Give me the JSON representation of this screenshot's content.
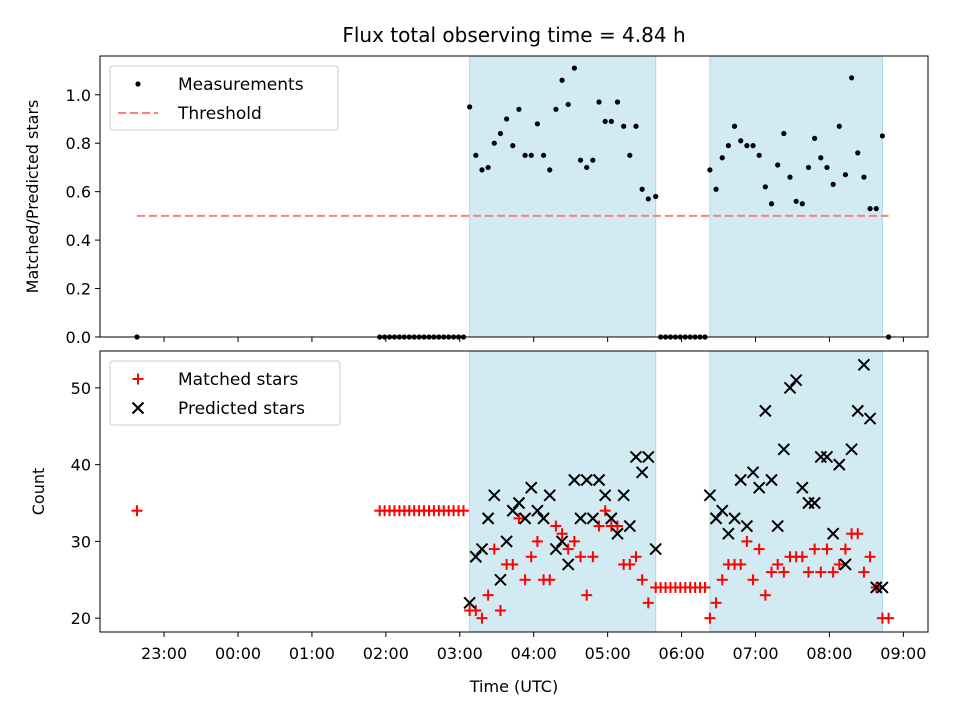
{
  "title": "Flux total observing time = 4.84 h",
  "colors": {
    "span": "#add8e6",
    "measurement": "#000000",
    "threshold": "#ff7f7f",
    "matched": "#ff0000",
    "predicted": "#000000"
  },
  "chart_data": [
    {
      "type": "scatter",
      "ylabel": "Matched/Predicted stars",
      "ylim": [
        0,
        1.16
      ],
      "yticks": [
        0.0,
        0.2,
        0.4,
        0.6,
        0.8,
        1.0
      ],
      "ytick_labels": [
        "0.0",
        "0.2",
        "0.4",
        "0.6",
        "0.8",
        "1.0"
      ],
      "legend_position": "top-left",
      "legend": [
        "Measurements",
        "Threshold"
      ],
      "threshold": {
        "value": 0.5,
        "x_start": "22:38",
        "x_end": "08:48"
      },
      "observing_spans": [
        [
          "03:08",
          "05:39"
        ],
        [
          "06:23",
          "08:43"
        ]
      ],
      "series": [
        {
          "name": "Measurements",
          "x": [
            "22:38",
            "01:55",
            "01:59",
            "02:03",
            "02:07",
            "02:11",
            "02:15",
            "02:19",
            "02:23",
            "02:27",
            "02:31",
            "02:35",
            "02:39",
            "02:43",
            "02:47",
            "02:51",
            "02:55",
            "02:59",
            "03:03",
            "03:08",
            "03:13",
            "03:18",
            "03:23",
            "03:28",
            "03:33",
            "03:38",
            "03:43",
            "03:48",
            "03:53",
            "03:58",
            "04:03",
            "04:08",
            "04:13",
            "04:18",
            "04:23",
            "04:28",
            "04:33",
            "04:38",
            "04:43",
            "04:48",
            "04:53",
            "04:58",
            "05:03",
            "05:08",
            "05:13",
            "05:18",
            "05:23",
            "05:28",
            "05:33",
            "05:39",
            "05:43",
            "05:47",
            "05:51",
            "05:55",
            "05:59",
            "06:03",
            "06:07",
            "06:11",
            "06:15",
            "06:19",
            "06:23",
            "06:28",
            "06:33",
            "06:38",
            "06:43",
            "06:48",
            "06:53",
            "06:58",
            "07:03",
            "07:08",
            "07:13",
            "07:18",
            "07:23",
            "07:28",
            "07:33",
            "07:38",
            "07:43",
            "07:48",
            "07:53",
            "07:58",
            "08:03",
            "08:08",
            "08:13",
            "08:18",
            "08:23",
            "08:28",
            "08:33",
            "08:38",
            "08:43",
            "08:48"
          ],
          "y": [
            0.0,
            0.0,
            0.0,
            0.0,
            0.0,
            0.0,
            0.0,
            0.0,
            0.0,
            0.0,
            0.0,
            0.0,
            0.0,
            0.0,
            0.0,
            0.0,
            0.0,
            0.0,
            0.0,
            0.95,
            0.75,
            0.69,
            0.7,
            0.8,
            0.84,
            0.9,
            0.79,
            0.94,
            0.75,
            0.75,
            0.88,
            0.75,
            0.69,
            0.94,
            1.06,
            0.96,
            1.11,
            0.73,
            0.7,
            0.73,
            0.97,
            0.89,
            0.89,
            0.97,
            0.87,
            0.75,
            0.87,
            0.61,
            0.57,
            0.58,
            0.0,
            0.0,
            0.0,
            0.0,
            0.0,
            0.0,
            0.0,
            0.0,
            0.0,
            0.0,
            0.69,
            0.61,
            0.74,
            0.79,
            0.87,
            0.81,
            0.79,
            0.79,
            0.75,
            0.62,
            0.55,
            0.71,
            0.84,
            0.66,
            0.56,
            0.55,
            0.7,
            0.82,
            0.74,
            0.7,
            0.63,
            0.87,
            0.67,
            1.07,
            0.76,
            0.66,
            0.53,
            0.53,
            0.83,
            0.0
          ]
        }
      ]
    },
    {
      "type": "scatter",
      "xlabel": "Time (UTC)",
      "ylabel": "Count",
      "ylim": [
        18.2,
        54.8
      ],
      "yticks": [
        20,
        30,
        40,
        50
      ],
      "ytick_labels": [
        "20",
        "30",
        "40",
        "50"
      ],
      "xlim": [
        "22:08",
        "09:20"
      ],
      "xticks": [
        "23:00",
        "00:00",
        "01:00",
        "02:00",
        "03:00",
        "04:00",
        "05:00",
        "06:00",
        "07:00",
        "08:00",
        "09:00"
      ],
      "xtick_labels": [
        "23:00",
        "00:00",
        "01:00",
        "02:00",
        "03:00",
        "04:00",
        "05:00",
        "06:00",
        "07:00",
        "08:00",
        "09:00"
      ],
      "legend_position": "top-left",
      "legend": [
        "Matched stars",
        "Predicted stars"
      ],
      "observing_spans": [
        [
          "03:08",
          "05:39"
        ],
        [
          "06:23",
          "08:43"
        ]
      ],
      "series": [
        {
          "name": "Matched stars",
          "x": [
            "22:38",
            "01:55",
            "01:59",
            "02:03",
            "02:07",
            "02:11",
            "02:15",
            "02:19",
            "02:23",
            "02:27",
            "02:31",
            "02:35",
            "02:39",
            "02:43",
            "02:47",
            "02:51",
            "02:55",
            "02:59",
            "03:03",
            "03:08",
            "03:13",
            "03:18",
            "03:23",
            "03:28",
            "03:33",
            "03:38",
            "03:43",
            "03:48",
            "03:53",
            "03:58",
            "04:03",
            "04:08",
            "04:13",
            "04:18",
            "04:23",
            "04:28",
            "04:33",
            "04:38",
            "04:43",
            "04:48",
            "04:53",
            "04:58",
            "05:03",
            "05:08",
            "05:13",
            "05:18",
            "05:23",
            "05:28",
            "05:33",
            "05:39",
            "05:43",
            "05:47",
            "05:51",
            "05:55",
            "05:59",
            "06:03",
            "06:07",
            "06:11",
            "06:15",
            "06:19",
            "06:23",
            "06:28",
            "06:33",
            "06:38",
            "06:43",
            "06:48",
            "06:53",
            "06:58",
            "07:03",
            "07:08",
            "07:13",
            "07:18",
            "07:23",
            "07:28",
            "07:33",
            "07:38",
            "07:43",
            "07:48",
            "07:53",
            "07:58",
            "08:03",
            "08:08",
            "08:13",
            "08:18",
            "08:23",
            "08:28",
            "08:33",
            "08:38",
            "08:43",
            "08:48"
          ],
          "y": [
            34,
            34,
            34,
            34,
            34,
            34,
            34,
            34,
            34,
            34,
            34,
            34,
            34,
            34,
            34,
            34,
            34,
            34,
            34,
            21,
            21,
            20,
            23,
            29,
            21,
            27,
            27,
            33,
            25,
            28,
            30,
            25,
            25,
            32,
            31,
            29,
            30,
            28,
            23,
            28,
            32,
            34,
            32,
            32,
            27,
            27,
            28,
            25,
            22,
            24,
            24,
            24,
            24,
            24,
            24,
            24,
            24,
            24,
            24,
            24,
            20,
            22,
            25,
            27,
            27,
            27,
            30,
            25,
            29,
            23,
            26,
            27,
            26,
            28,
            28,
            28,
            26,
            29,
            26,
            29,
            26,
            27,
            29,
            31,
            31,
            26,
            28,
            24,
            20,
            20
          ]
        },
        {
          "name": "Predicted stars",
          "x": [
            "03:08",
            "03:13",
            "03:18",
            "03:23",
            "03:28",
            "03:33",
            "03:38",
            "03:43",
            "03:48",
            "03:53",
            "03:58",
            "04:03",
            "04:08",
            "04:13",
            "04:18",
            "04:23",
            "04:28",
            "04:33",
            "04:38",
            "04:43",
            "04:48",
            "04:53",
            "04:58",
            "05:03",
            "05:08",
            "05:13",
            "05:18",
            "05:23",
            "05:28",
            "05:33",
            "05:39",
            "06:23",
            "06:28",
            "06:33",
            "06:38",
            "06:43",
            "06:48",
            "06:53",
            "06:58",
            "07:03",
            "07:08",
            "07:13",
            "07:18",
            "07:23",
            "07:28",
            "07:33",
            "07:38",
            "07:43",
            "07:48",
            "07:53",
            "07:58",
            "08:03",
            "08:08",
            "08:13",
            "08:18",
            "08:23",
            "08:28",
            "08:33",
            "08:38",
            "08:43"
          ],
          "y": [
            22,
            28,
            29,
            33,
            36,
            25,
            30,
            34,
            35,
            33,
            37,
            34,
            33,
            36,
            29,
            30,
            27,
            38,
            33,
            38,
            33,
            38,
            36,
            33,
            31,
            36,
            32,
            41,
            39,
            41,
            29,
            36,
            33,
            34,
            31,
            33,
            38,
            32,
            39,
            37,
            47,
            38,
            32,
            42,
            50,
            51,
            37,
            35,
            35,
            41,
            41,
            31,
            40,
            27,
            42,
            47,
            53,
            46,
            24,
            24
          ]
        }
      ]
    }
  ]
}
